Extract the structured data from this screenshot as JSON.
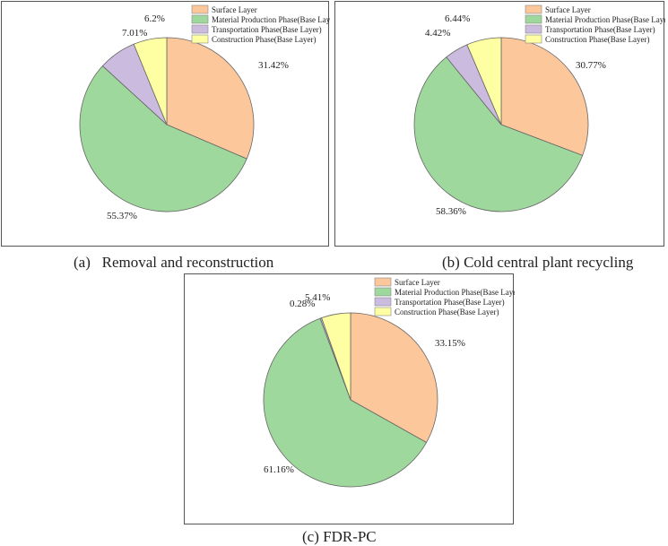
{
  "chart_data": [
    {
      "type": "pie",
      "title": "(a)   Removal and reconstruction",
      "legend": [
        "Surface Layer",
        "Material Production Phase(Base Layer)",
        "Transportation Phase(Base Layer)",
        "Construction Phase(Base Layer)"
      ],
      "values": [
        31.42,
        55.37,
        7.01,
        6.2
      ],
      "labels": [
        "31.42%",
        "55.37%",
        "7.01%",
        "6.2%"
      ],
      "colors": [
        "#fcc79a",
        "#9fd89c",
        "#cbbbdf",
        "#feffa3"
      ],
      "legend_position": "top-right"
    },
    {
      "type": "pie",
      "title": "(b) Cold central plant recycling",
      "legend": [
        "Surface Layer",
        "Material Production Phase(Base Layer)",
        "Transportation Phase(Base Layer)",
        "Construction Phase(Base Layer)"
      ],
      "values": [
        30.77,
        58.36,
        4.42,
        6.44
      ],
      "labels": [
        "30.77%",
        "58.36%",
        "4.42%",
        "6.44%"
      ],
      "colors": [
        "#fcc79a",
        "#9fd89c",
        "#cbbbdf",
        "#feffa3"
      ],
      "legend_position": "top-right"
    },
    {
      "type": "pie",
      "title": "(c) FDR-PC",
      "legend": [
        "Surface Layer",
        "Material Production Phase(Base Layer)",
        "Transportation Phase(Base Layer)",
        "Construction Phase(Base Layer)"
      ],
      "values": [
        33.15,
        61.16,
        0.28,
        5.41
      ],
      "labels": [
        "33.15%",
        "61.16%",
        "0.28%",
        "5.41%"
      ],
      "colors": [
        "#fcc79a",
        "#9fd89c",
        "#cbbbdf",
        "#feffa3"
      ],
      "legend_position": "top-right"
    }
  ]
}
